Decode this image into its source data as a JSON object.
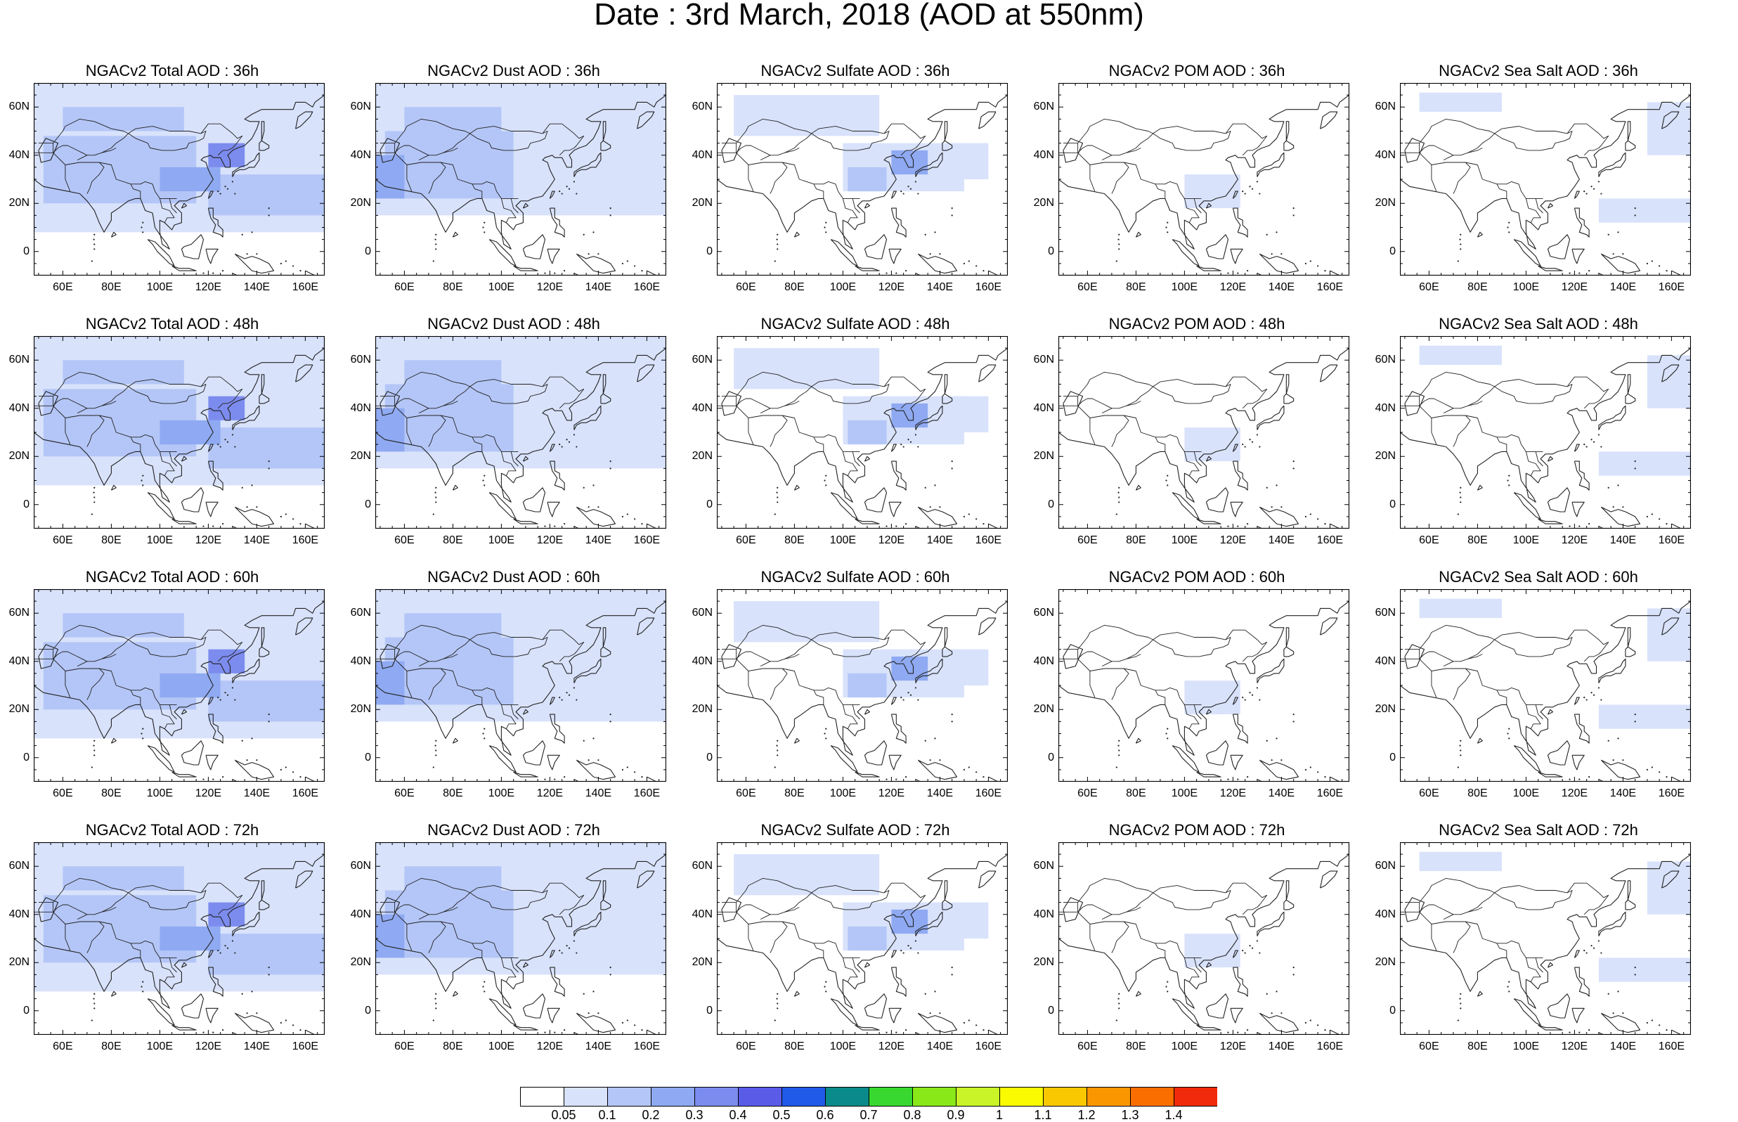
{
  "title": "Date : 3rd March, 2018 (AOD at 550nm)",
  "lat_ticks": [
    "60N",
    "40N",
    "20N",
    "0"
  ],
  "lon_ticks": [
    "60E",
    "80E",
    "100E",
    "120E",
    "140E",
    "160E"
  ],
  "map_extent": {
    "lon": [
      48,
      168
    ],
    "lat": [
      -10,
      70
    ]
  },
  "panels": [
    [
      {
        "title": "NGACv2 Total AOD : 36h",
        "var": "total"
      },
      {
        "title": "NGACv2 Dust AOD : 36h",
        "var": "dust"
      },
      {
        "title": "NGACv2 Sulfate AOD : 36h",
        "var": "sulfate"
      },
      {
        "title": "NGACv2 POM AOD : 36h",
        "var": "pom"
      },
      {
        "title": "NGACv2 Sea Salt AOD : 36h",
        "var": "seasalt"
      }
    ],
    [
      {
        "title": "NGACv2 Total AOD : 48h",
        "var": "total"
      },
      {
        "title": "NGACv2 Dust AOD : 48h",
        "var": "dust"
      },
      {
        "title": "NGACv2 Sulfate AOD : 48h",
        "var": "sulfate"
      },
      {
        "title": "NGACv2 POM AOD : 48h",
        "var": "pom"
      },
      {
        "title": "NGACv2 Sea Salt AOD : 48h",
        "var": "seasalt"
      }
    ],
    [
      {
        "title": "NGACv2 Total AOD : 60h",
        "var": "total"
      },
      {
        "title": "NGACv2 Dust AOD : 60h",
        "var": "dust"
      },
      {
        "title": "NGACv2 Sulfate AOD : 60h",
        "var": "sulfate"
      },
      {
        "title": "NGACv2 POM AOD : 60h",
        "var": "pom"
      },
      {
        "title": "NGACv2 Sea Salt AOD : 60h",
        "var": "seasalt"
      }
    ],
    [
      {
        "title": "NGACv2 Total AOD : 72h",
        "var": "total"
      },
      {
        "title": "NGACv2 Dust AOD : 72h",
        "var": "dust"
      },
      {
        "title": "NGACv2 Sulfate AOD : 72h",
        "var": "sulfate"
      },
      {
        "title": "NGACv2 POM AOD : 72h",
        "var": "pom"
      },
      {
        "title": "NGACv2 Sea Salt  AOD : 72h",
        "var": "seasalt"
      }
    ]
  ],
  "colorbar": {
    "labels": [
      "0.05",
      "0.1",
      "0.2",
      "0.3",
      "0.4",
      "0.5",
      "0.6",
      "0.7",
      "0.8",
      "0.9",
      "1",
      "1.1",
      "1.2",
      "1.3",
      "1.4"
    ],
    "colors": [
      "#ffffff",
      "#d8e2fb",
      "#b4c6f7",
      "#8faaf2",
      "#7c8cee",
      "#5a5ce8",
      "#1f5ae8",
      "#0a8a8a",
      "#38d830",
      "#88e818",
      "#c8f428",
      "#fafa00",
      "#fac800",
      "#fa9600",
      "#fa6e00",
      "#f02a0a"
    ]
  }
}
